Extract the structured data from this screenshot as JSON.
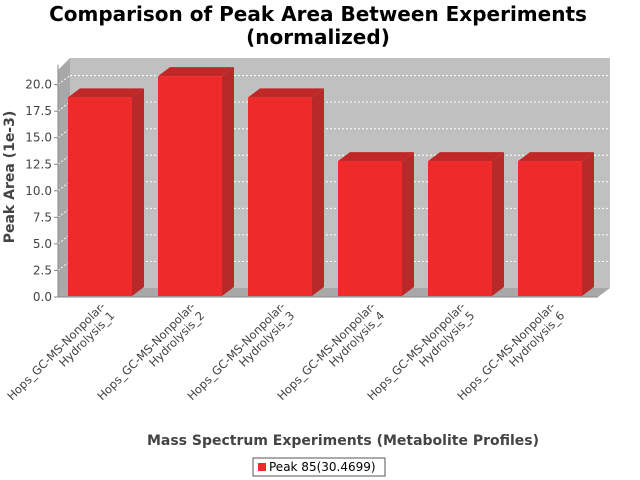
{
  "chart_data": {
    "type": "bar",
    "title_lines": [
      "Comparison of Peak Area Between Experiments",
      "(normalized)"
    ],
    "xlabel": "Mass Spectrum Experiments (Metabolite Profiles)",
    "ylabel": "Peak Area (1e-3)",
    "categories": [
      [
        "Hops_GC-MS-Nonpolar-",
        "Hydrolysis_1"
      ],
      [
        "Hops_GC-MS-Nonpolar-",
        "Hydrolysis_2"
      ],
      [
        "Hops_GC-MS-Nonpolar-",
        "Hydrolysis_3"
      ],
      [
        "Hops_GC-MS-Nonpolar-",
        "Hydrolysis_4"
      ],
      [
        "Hops_GC-MS-Nonpolar-",
        "Hydrolysis_5"
      ],
      [
        "Hops_GC-MS-Nonpolar-",
        "Hydrolysis_6"
      ]
    ],
    "series": [
      {
        "name": "Peak 85(30.4699)",
        "color": "#ee2a2a",
        "values": [
          18.8,
          20.8,
          18.8,
          12.8,
          12.8,
          12.8
        ]
      }
    ],
    "ylim": [
      0,
      21.5
    ],
    "yticks": [
      "0.0",
      "2.5",
      "5.0",
      "7.5",
      "10.0",
      "12.5",
      "15.0",
      "17.5",
      "20.0"
    ],
    "grid": true,
    "legend": "bottom-center",
    "plot_background": "#c0c0c0"
  }
}
